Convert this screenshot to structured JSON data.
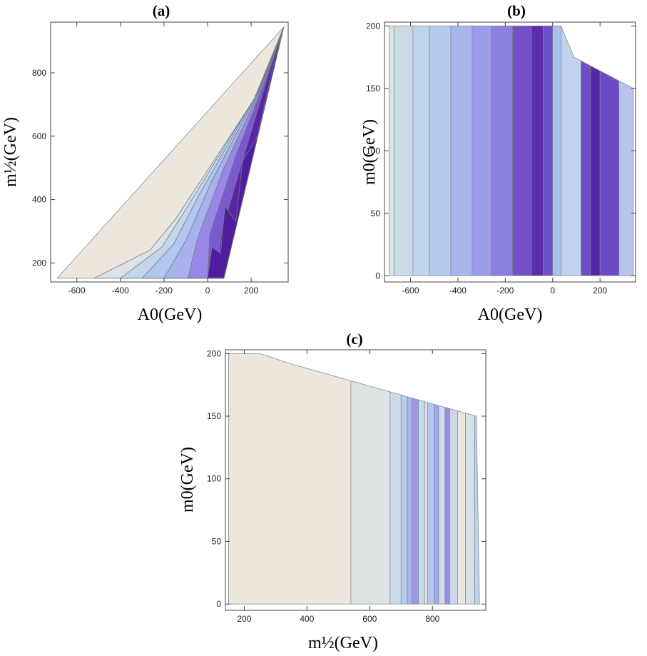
{
  "chart_data": [
    {
      "id": "a",
      "type": "contour",
      "title": "(a)",
      "xlabel": "A0(GeV)",
      "ylabel": "m½(GeV)",
      "xlim": [
        -720,
        370
      ],
      "ylim": [
        140,
        960
      ],
      "xticks": [
        -600,
        -400,
        -200,
        0,
        200
      ],
      "xtick_labels": [
        "-600",
        "-400",
        "-200",
        "0",
        "200"
      ],
      "yticks": [
        200,
        400,
        600,
        800
      ],
      "ytick_labels": [
        "200",
        "400",
        "600",
        "800"
      ],
      "grid": false,
      "colorscale": [
        "#ece6dc",
        "#dbe2e8",
        "#c4d6ec",
        "#b2c7ee",
        "#a7b2ec",
        "#9887e4",
        "#7a5acd",
        "#5a24a8"
      ],
      "valid_region_boundary": [
        [
          -690,
          152
        ],
        [
          -640,
          152
        ],
        [
          -300,
          152
        ],
        [
          0,
          152
        ],
        [
          75,
          152
        ],
        [
          350,
          945
        ]
      ],
      "excluded_fill": "#ffffff"
    },
    {
      "id": "b",
      "type": "contour",
      "title": "(b)",
      "xlabel": "A0(GeV)",
      "ylabel": "m0(GeV)",
      "xlim": [
        -710,
        350
      ],
      "ylim": [
        -5,
        203
      ],
      "xticks": [
        -600,
        -400,
        -200,
        0,
        200
      ],
      "xtick_labels": [
        "-600",
        "-400",
        "-200",
        "0",
        "200"
      ],
      "yticks": [
        0,
        50,
        100,
        150,
        200
      ],
      "ytick_labels": [
        "0",
        "50",
        "100",
        "150",
        "200"
      ],
      "grid": false,
      "vertical_bands_x": [
        -690,
        -670,
        -590,
        -520,
        -430,
        -340,
        -260,
        -170,
        -90,
        -40,
        0,
        35,
        120,
        160,
        200,
        280,
        340
      ],
      "band_colors": [
        "#dde2e2",
        "#cbdbe6",
        "#bed4ec",
        "#b4cbee",
        "#a7b7ec",
        "#9d9cea",
        "#8c80e0",
        "#7350c8",
        "#5d2eaa",
        "#7050c6",
        "#a7c4ec",
        "#c2d2ee",
        "#6d4cc4",
        "#5428a4",
        "#6e4bc6",
        "#b8c4ec"
      ],
      "excluded_corner": [
        [
          35,
          200
        ],
        [
          340,
          150
        ]
      ]
    },
    {
      "id": "c",
      "type": "contour",
      "title": "(c)",
      "xlabel": "m½(GeV)",
      "ylabel": "m0(GeV)",
      "xlim": [
        140,
        970
      ],
      "ylim": [
        -5,
        203
      ],
      "xticks": [
        200,
        400,
        600,
        800
      ],
      "xtick_labels": [
        "200",
        "400",
        "600",
        "800"
      ],
      "yticks": [
        0,
        50,
        100,
        150,
        200
      ],
      "ytick_labels": [
        "0",
        "50",
        "100",
        "150",
        "200"
      ],
      "grid": false,
      "vertical_bands_x": [
        150,
        540,
        665,
        700,
        720,
        735,
        755,
        775,
        785,
        805,
        820,
        840,
        855,
        880,
        905,
        935,
        950
      ],
      "band_colors": [
        "#ece6dc",
        "#dde2e2",
        "#cbdbe8",
        "#b6cbee",
        "#a9b5ec",
        "#9f95e6",
        "#c6d8ec",
        "#e6e2d6",
        "#b5c9ee",
        "#a0a8ec",
        "#cfdaea",
        "#9b8ee4",
        "#cbd8ea",
        "#e9e5da",
        "#d6dee6",
        "#bfd2ec"
      ],
      "excluded_boundary": [
        [
          150,
          200
        ],
        [
          250,
          200
        ],
        [
          940,
          150
        ]
      ]
    }
  ]
}
